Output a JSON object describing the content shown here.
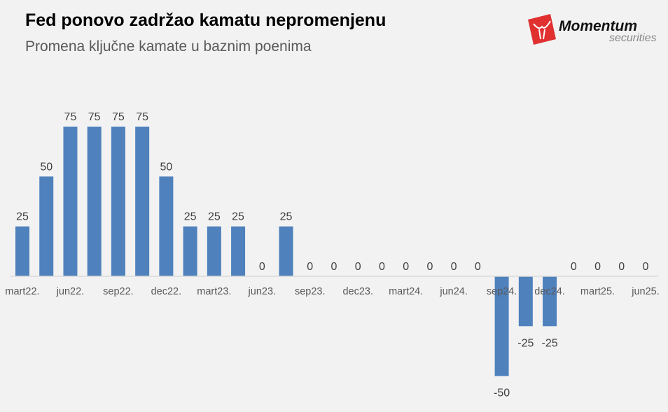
{
  "chart_data": {
    "type": "bar",
    "title": "Fed ponovo zadržao kamatu nepromenjenu",
    "subtitle": "Promena ključne kamate u baznim poenima",
    "categories": [
      "mart22.",
      "",
      "jun22.",
      "",
      "sep22.",
      "",
      "dec22.",
      "",
      "mart23.",
      "",
      "jun23.",
      "",
      "sep23.",
      "",
      "dec23.",
      "",
      "mart24.",
      "",
      "jun24.",
      "",
      "sep24.",
      "",
      "dec24.",
      "",
      "mart25.",
      "",
      "jun25."
    ],
    "values": [
      25,
      50,
      75,
      75,
      75,
      75,
      50,
      25,
      25,
      25,
      0,
      25,
      0,
      0,
      0,
      0,
      0,
      0,
      0,
      0,
      -50,
      -25,
      -25,
      0,
      0,
      0,
      0
    ],
    "data_labels": true,
    "grid": false,
    "bar_color": "#4f81bd",
    "axis_color": "#d9d9d9"
  },
  "logo": {
    "brand": "Momentum",
    "sub": "securities",
    "color": "#e03030"
  }
}
